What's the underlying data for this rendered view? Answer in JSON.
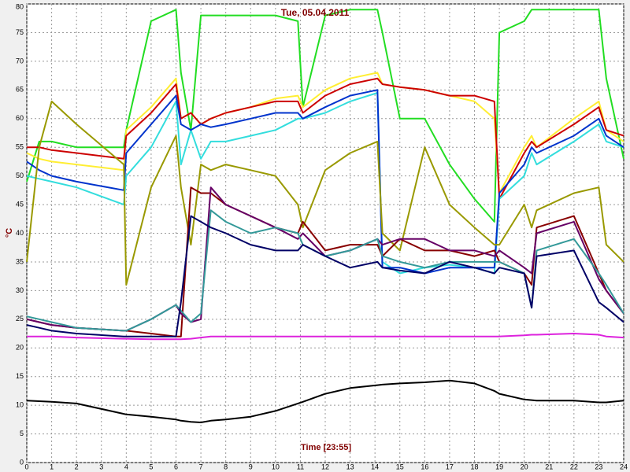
{
  "chart_data": {
    "type": "line",
    "title": "Tue, 05.04.2011",
    "x_label": "Time [23:55]",
    "y_label": "°C",
    "xlim": [
      0,
      24
    ],
    "xticks": [
      0,
      1,
      2,
      3,
      4,
      5,
      6,
      7,
      8,
      9,
      10,
      11,
      12,
      13,
      14,
      15,
      16,
      17,
      18,
      19,
      20,
      21,
      22,
      23,
      24
    ],
    "ylim": [
      0,
      80
    ],
    "yticks": [
      0,
      5,
      10,
      15,
      20,
      25,
      30,
      35,
      40,
      45,
      50,
      55,
      60,
      65,
      70,
      75,
      80
    ],
    "grid": true,
    "x": [
      0,
      0.5,
      1,
      2,
      3.9,
      4.0,
      5,
      6,
      6.2,
      6.6,
      7,
      7.4,
      8,
      9,
      10,
      10.9,
      11.1,
      12,
      13,
      14.1,
      14.3,
      15,
      16,
      17,
      18,
      18.8,
      19,
      20,
      20.3,
      20.5,
      22,
      23,
      23.3,
      24
    ],
    "series": [
      {
        "color": "#22dd22",
        "values": [
          49,
          56,
          56,
          55,
          55,
          58,
          77,
          79,
          68,
          58,
          78,
          78,
          78,
          78,
          78,
          77,
          62,
          78,
          79,
          79,
          75,
          60,
          60,
          52,
          46,
          42,
          75,
          77,
          79,
          79,
          79,
          79,
          67,
          53
        ]
      },
      {
        "color": "#ffee33",
        "values": [
          54,
          53,
          52.5,
          52,
          51,
          58,
          62,
          67,
          60,
          61,
          59,
          60,
          61,
          62,
          63.5,
          64,
          62,
          65,
          67,
          68,
          66,
          65.5,
          65,
          64,
          63,
          60,
          47,
          55,
          57,
          55,
          60,
          63,
          58,
          56
        ]
      },
      {
        "color": "#cc0000",
        "values": [
          55,
          55,
          54.5,
          54,
          53,
          57,
          61,
          66,
          60,
          61,
          59,
          60,
          61,
          62,
          63,
          63,
          61,
          64,
          66,
          67,
          66,
          65.5,
          65,
          64,
          64,
          63,
          46,
          54,
          56,
          55,
          59,
          62,
          58,
          57
        ]
      },
      {
        "color": "#33dddd",
        "values": [
          50,
          49.5,
          49,
          48,
          45,
          50,
          55,
          63,
          52,
          58,
          53,
          56,
          56,
          57,
          58,
          60,
          60,
          61,
          63,
          64.5,
          35,
          33,
          34,
          34.5,
          34,
          33,
          46,
          50,
          54,
          52,
          56,
          59,
          56,
          55
        ]
      },
      {
        "color": "#0033cc",
        "values": [
          52.5,
          51,
          50,
          49,
          47.5,
          54,
          59,
          64,
          59,
          58,
          59,
          58.5,
          59,
          60,
          61,
          61,
          60,
          62,
          64,
          65,
          34,
          34,
          33,
          34,
          34,
          34,
          47,
          52,
          55,
          54,
          57,
          60,
          57,
          55
        ]
      },
      {
        "color": "#999900",
        "values": [
          35,
          55,
          63,
          59,
          52,
          31,
          48,
          57,
          48,
          38,
          52,
          51,
          52,
          51,
          50,
          45,
          41,
          51,
          54,
          56,
          40,
          37,
          55,
          45,
          41,
          38,
          38,
          45,
          41,
          44,
          47,
          48,
          38,
          35
        ]
      },
      {
        "color": "#880000",
        "values": [
          25,
          24.5,
          24,
          23.5,
          23,
          23,
          22.5,
          22,
          22,
          48,
          47,
          47,
          45,
          43,
          41,
          40,
          42,
          37,
          38,
          38,
          36,
          39,
          37,
          37,
          36,
          37,
          35,
          33,
          31,
          41,
          43,
          33,
          30,
          26
        ]
      },
      {
        "color": "#660066",
        "values": [
          25,
          24.5,
          24,
          23.5,
          23,
          23,
          25,
          27.5,
          26,
          24.5,
          25,
          48,
          45,
          43,
          41,
          39,
          40,
          36,
          37,
          39,
          38,
          39,
          39,
          37,
          37,
          36,
          37,
          34,
          33,
          40,
          42,
          32,
          30,
          26
        ]
      },
      {
        "color": "#339999",
        "values": [
          25.5,
          25,
          24.5,
          23.5,
          23,
          23,
          25,
          27.5,
          26.5,
          24.5,
          26,
          44,
          42,
          40,
          41,
          40,
          38,
          36,
          37,
          39,
          36,
          35,
          34,
          35,
          35,
          35,
          35,
          33,
          27,
          37,
          39,
          33,
          31,
          26
        ]
      },
      {
        "color": "#000066",
        "values": [
          24,
          23.5,
          23,
          22.5,
          22,
          22,
          22,
          22,
          28,
          43,
          42,
          41,
          40,
          38,
          37,
          37,
          38,
          36,
          34,
          35,
          34,
          33.5,
          33,
          35,
          34,
          33,
          34,
          33,
          27,
          36,
          37,
          28,
          27,
          24.5
        ]
      },
      {
        "color": "#dd22dd",
        "values": [
          22,
          22,
          22,
          21.8,
          21.6,
          21.6,
          21.5,
          21.5,
          21.5,
          21.6,
          21.8,
          22,
          22,
          22,
          22,
          22,
          22,
          22,
          22,
          22,
          22,
          22,
          22,
          22,
          22,
          22,
          22,
          22.2,
          22.3,
          22.3,
          22.5,
          22.3,
          22,
          21.8
        ]
      },
      {
        "color": "#000000",
        "values": [
          10.8,
          10.7,
          10.6,
          10.3,
          8.5,
          8.4,
          8,
          7.5,
          7.3,
          7.1,
          7,
          7.3,
          7.5,
          8,
          9,
          10.3,
          10.6,
          12,
          13,
          13.5,
          13.6,
          13.8,
          14,
          14.3,
          13.8,
          12.5,
          12,
          11,
          10.9,
          10.8,
          10.8,
          10.5,
          10.5,
          10.8
        ]
      }
    ]
  }
}
